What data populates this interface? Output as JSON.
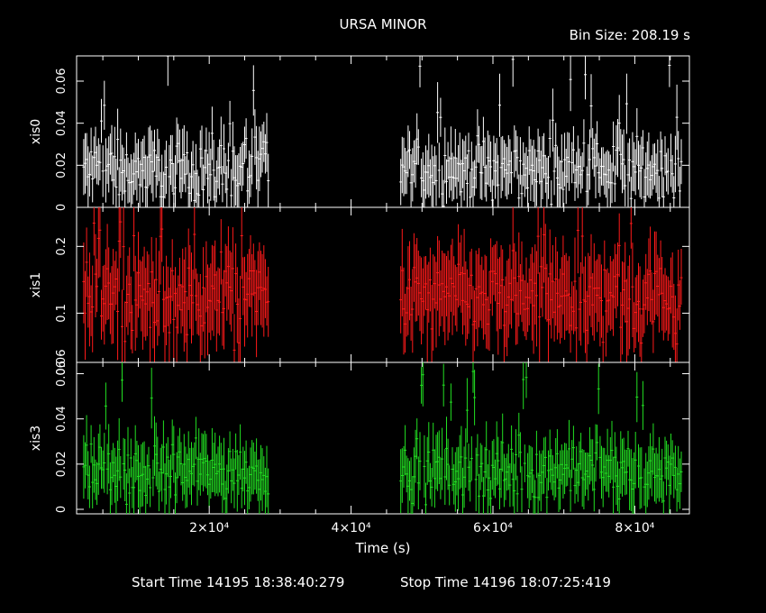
{
  "chart_data": {
    "type": "line",
    "title": "URSA MINOR",
    "bin_size_label": "Bin Size: 208.19 s",
    "xlabel": "Time (s)",
    "xlim": [
      1300,
      87700
    ],
    "x_ticks": [
      {
        "value": 20000,
        "label": "2×10⁴"
      },
      {
        "value": 40000,
        "label": "4×10⁴"
      },
      {
        "value": 60000,
        "label": "6×10⁴"
      },
      {
        "value": 80000,
        "label": "8×10⁴"
      }
    ],
    "start_time_label": "Start Time 14195 18:38:40:279",
    "stop_time_label": "Stop Time 14196 18:07:25:419",
    "grid": false,
    "segments": [
      [
        2300,
        28500
      ],
      [
        47000,
        86700
      ]
    ],
    "panels": [
      {
        "name": "xis0",
        "color": "#ffffff",
        "ylim": [
          0,
          0.072
        ],
        "log": false,
        "ticks": [
          0,
          0.02,
          0.04,
          0.06
        ],
        "tick_labels": [
          "0",
          "0.02",
          "0.04",
          "0.06"
        ],
        "mean": 0.018,
        "spread": 0.012,
        "peaks": [
          0.046,
          0.052,
          0.072,
          0.044,
          0.062,
          0.072,
          0.05
        ]
      },
      {
        "name": "xis1",
        "color": "#ff1a1a",
        "ylim": [
          0.06,
          0.3
        ],
        "log": true,
        "ticks": [
          0.06,
          0.1,
          0.2
        ],
        "tick_labels": [
          "0.06",
          "0.1",
          "0.2"
        ],
        "mean": 0.12,
        "spread": 0.04,
        "peaks": [
          0.26,
          0.25,
          0.24,
          0.22,
          0.26,
          0.2,
          0.25
        ]
      },
      {
        "name": "xis3",
        "color": "#22e022",
        "ylim": [
          -0.002,
          0.065
        ],
        "log": false,
        "ticks": [
          0,
          0.02,
          0.04,
          0.06
        ],
        "tick_labels": [
          "0",
          "0.02",
          "0.04",
          "0.06"
        ],
        "mean": 0.017,
        "spread": 0.011,
        "peaks": [
          0.05,
          0.062,
          0.055,
          0.06,
          0.063,
          0.058,
          0.05
        ]
      }
    ]
  }
}
